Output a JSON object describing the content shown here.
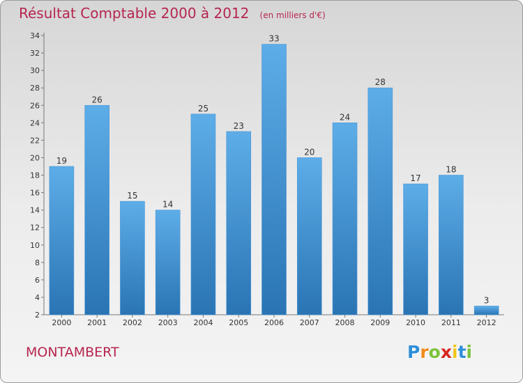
{
  "header": {
    "title": "Résultat Comptable 2000 à 2012",
    "subtitle": "(en milliers d'€)"
  },
  "commune": "MONTAMBERT",
  "logo": {
    "letters": [
      "P",
      "r",
      "o",
      "x",
      "i",
      "t",
      "i"
    ],
    "colors": [
      "#2f8fd8",
      "#f08a1c",
      "#7cc23a",
      "#d7261e",
      "#f0c419",
      "#2f8fd8",
      "#7cc23a"
    ]
  },
  "colors": {
    "bar_top": "#5dade8",
    "bar_bottom": "#2a74b4",
    "accent": "#b5264f"
  },
  "chart_data": {
    "type": "bar",
    "title": "Résultat Comptable 2000 à 2012",
    "subtitle": "(en milliers d'€)",
    "xlabel": "",
    "ylabel": "",
    "categories": [
      "2000",
      "2001",
      "2002",
      "2003",
      "2004",
      "2005",
      "2006",
      "2007",
      "2008",
      "2009",
      "2010",
      "2011",
      "2012"
    ],
    "values": [
      19,
      26,
      15,
      14,
      25,
      23,
      33,
      20,
      24,
      28,
      17,
      18,
      3
    ],
    "ylim": [
      2,
      34
    ],
    "yticks": [
      2,
      4,
      6,
      8,
      10,
      12,
      14,
      16,
      18,
      20,
      22,
      24,
      26,
      28,
      30,
      32,
      34
    ],
    "grid": false
  }
}
